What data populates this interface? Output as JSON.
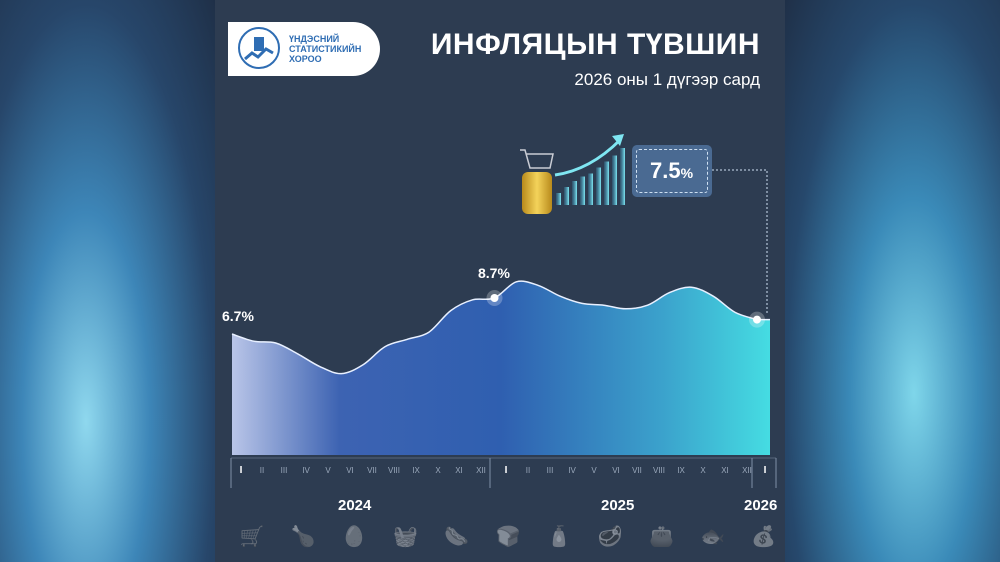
{
  "header": {
    "logo_text": [
      "ҮНДЭСНИЙ",
      "СТАТИСТИКИЙН",
      "ХОРОО"
    ],
    "title": "ИНФЛЯЦЫН ТҮВШИН",
    "subtitle": "2026 оны 1 дүгээр сард"
  },
  "highlight": {
    "value": "7.5",
    "unit": "%"
  },
  "chart_data": {
    "type": "area",
    "title": "",
    "x": [
      "2024-I",
      "2024-II",
      "2024-III",
      "2024-IV",
      "2024-V",
      "2024-VI",
      "2024-VII",
      "2024-VIII",
      "2024-IX",
      "2024-X",
      "2024-XI",
      "2024-XII",
      "2025-I",
      "2025-II",
      "2025-III",
      "2025-IV",
      "2025-V",
      "2025-VI",
      "2025-VII",
      "2025-VIII",
      "2025-IX",
      "2025-X",
      "2025-XI",
      "2025-XII",
      "2026-I"
    ],
    "values": [
      6.7,
      6.3,
      6.2,
      5.6,
      4.9,
      4.5,
      5.0,
      6.0,
      6.4,
      6.8,
      8.0,
      8.6,
      8.7,
      9.6,
      9.4,
      8.8,
      8.4,
      8.3,
      8.1,
      8.3,
      9.0,
      9.3,
      8.8,
      7.9,
      7.5
    ],
    "unit": "%",
    "data_labels": [
      {
        "index": 0,
        "text": "6.7%"
      },
      {
        "index": 12,
        "text": "8.7%"
      },
      {
        "index": 24,
        "text": "7.5%"
      }
    ],
    "month_ticks": [
      "I",
      "II",
      "III",
      "IV",
      "V",
      "VI",
      "VII",
      "VIII",
      "IX",
      "X",
      "XI",
      "XII",
      "I",
      "II",
      "III",
      "IV",
      "V",
      "VI",
      "VII",
      "VIII",
      "IX",
      "X",
      "XI",
      "XII",
      "I"
    ],
    "years": [
      "2024",
      "2025",
      "2026"
    ],
    "grid": false,
    "colors": {
      "fill_start": "#b9c5e8",
      "fill_mid": "#2f5fb0",
      "fill_end": "#45dce2",
      "line": "#e8f0ff"
    }
  },
  "footer_icons": [
    "cart-icon",
    "chicken-icon",
    "eggs-icon",
    "basket-icon",
    "sausage-icon",
    "bread-icon",
    "bottles-icon",
    "meat-icon",
    "wallet-icon",
    "canned-fish-icon",
    "money-bag-icon"
  ]
}
